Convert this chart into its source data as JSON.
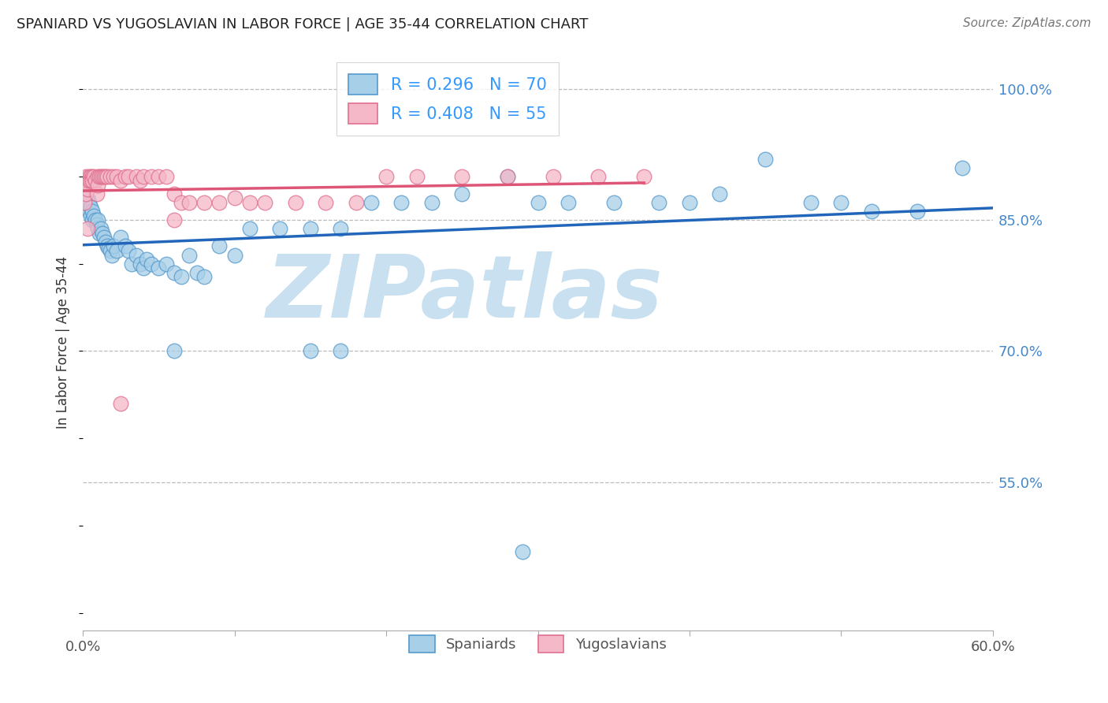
{
  "title": "SPANIARD VS YUGOSLAVIAN IN LABOR FORCE | AGE 35-44 CORRELATION CHART",
  "source": "Source: ZipAtlas.com",
  "ylabel": "In Labor Force | Age 35-44",
  "yticks": [
    0.55,
    0.7,
    0.85,
    1.0
  ],
  "ytick_labels": [
    "55.0%",
    "70.0%",
    "85.0%",
    "100.0%"
  ],
  "xlim": [
    0.0,
    0.6
  ],
  "ylim": [
    0.38,
    1.04
  ],
  "blue_color": "#a8cfe8",
  "pink_color": "#f4b8c8",
  "blue_edge_color": "#5599cc",
  "pink_edge_color": "#e07090",
  "blue_line_color": "#2266bb",
  "pink_line_color": "#dd5577",
  "spaniards_x": [
    0.001,
    0.002,
    0.002,
    0.003,
    0.003,
    0.004,
    0.004,
    0.005,
    0.005,
    0.006,
    0.006,
    0.007,
    0.008,
    0.009,
    0.01,
    0.01,
    0.011,
    0.012,
    0.013,
    0.014,
    0.015,
    0.016,
    0.017,
    0.018,
    0.019,
    0.02,
    0.022,
    0.025,
    0.028,
    0.03,
    0.032,
    0.035,
    0.038,
    0.04,
    0.042,
    0.045,
    0.05,
    0.055,
    0.06,
    0.065,
    0.07,
    0.075,
    0.08,
    0.09,
    0.1,
    0.11,
    0.13,
    0.15,
    0.17,
    0.19,
    0.21,
    0.23,
    0.25,
    0.28,
    0.3,
    0.32,
    0.35,
    0.38,
    0.4,
    0.42,
    0.45,
    0.48,
    0.5,
    0.52,
    0.55,
    0.58,
    0.06,
    0.15,
    0.17,
    0.29
  ],
  "spaniards_y": [
    0.875,
    0.87,
    0.88,
    0.865,
    0.875,
    0.86,
    0.87,
    0.855,
    0.865,
    0.85,
    0.86,
    0.855,
    0.85,
    0.845,
    0.84,
    0.85,
    0.835,
    0.84,
    0.835,
    0.83,
    0.825,
    0.82,
    0.818,
    0.815,
    0.81,
    0.82,
    0.815,
    0.83,
    0.82,
    0.815,
    0.8,
    0.81,
    0.8,
    0.795,
    0.805,
    0.8,
    0.795,
    0.8,
    0.79,
    0.785,
    0.81,
    0.79,
    0.785,
    0.82,
    0.81,
    0.84,
    0.84,
    0.84,
    0.84,
    0.87,
    0.87,
    0.87,
    0.88,
    0.9,
    0.87,
    0.87,
    0.87,
    0.87,
    0.87,
    0.88,
    0.92,
    0.87,
    0.87,
    0.86,
    0.86,
    0.91,
    0.7,
    0.7,
    0.7,
    0.47
  ],
  "yugoslavians_x": [
    0.001,
    0.002,
    0.002,
    0.003,
    0.003,
    0.004,
    0.004,
    0.005,
    0.005,
    0.006,
    0.006,
    0.007,
    0.008,
    0.009,
    0.01,
    0.01,
    0.011,
    0.012,
    0.013,
    0.014,
    0.015,
    0.016,
    0.018,
    0.02,
    0.022,
    0.025,
    0.028,
    0.03,
    0.035,
    0.038,
    0.04,
    0.045,
    0.05,
    0.055,
    0.06,
    0.065,
    0.07,
    0.08,
    0.09,
    0.1,
    0.11,
    0.12,
    0.14,
    0.16,
    0.18,
    0.2,
    0.22,
    0.25,
    0.28,
    0.31,
    0.34,
    0.37,
    0.06,
    0.003,
    0.025
  ],
  "yugoslavians_y": [
    0.87,
    0.88,
    0.9,
    0.895,
    0.885,
    0.9,
    0.895,
    0.9,
    0.895,
    0.9,
    0.895,
    0.9,
    0.895,
    0.88,
    0.9,
    0.89,
    0.9,
    0.9,
    0.9,
    0.9,
    0.9,
    0.9,
    0.9,
    0.9,
    0.9,
    0.895,
    0.9,
    0.9,
    0.9,
    0.895,
    0.9,
    0.9,
    0.9,
    0.9,
    0.88,
    0.87,
    0.87,
    0.87,
    0.87,
    0.875,
    0.87,
    0.87,
    0.87,
    0.87,
    0.87,
    0.9,
    0.9,
    0.9,
    0.9,
    0.9,
    0.9,
    0.9,
    0.85,
    0.84,
    0.64
  ],
  "watermark_text": "ZIPatlas",
  "watermark_color": "#c8e0f0",
  "blue_R": "0.296",
  "blue_N": "70",
  "pink_R": "0.408",
  "pink_N": "55"
}
